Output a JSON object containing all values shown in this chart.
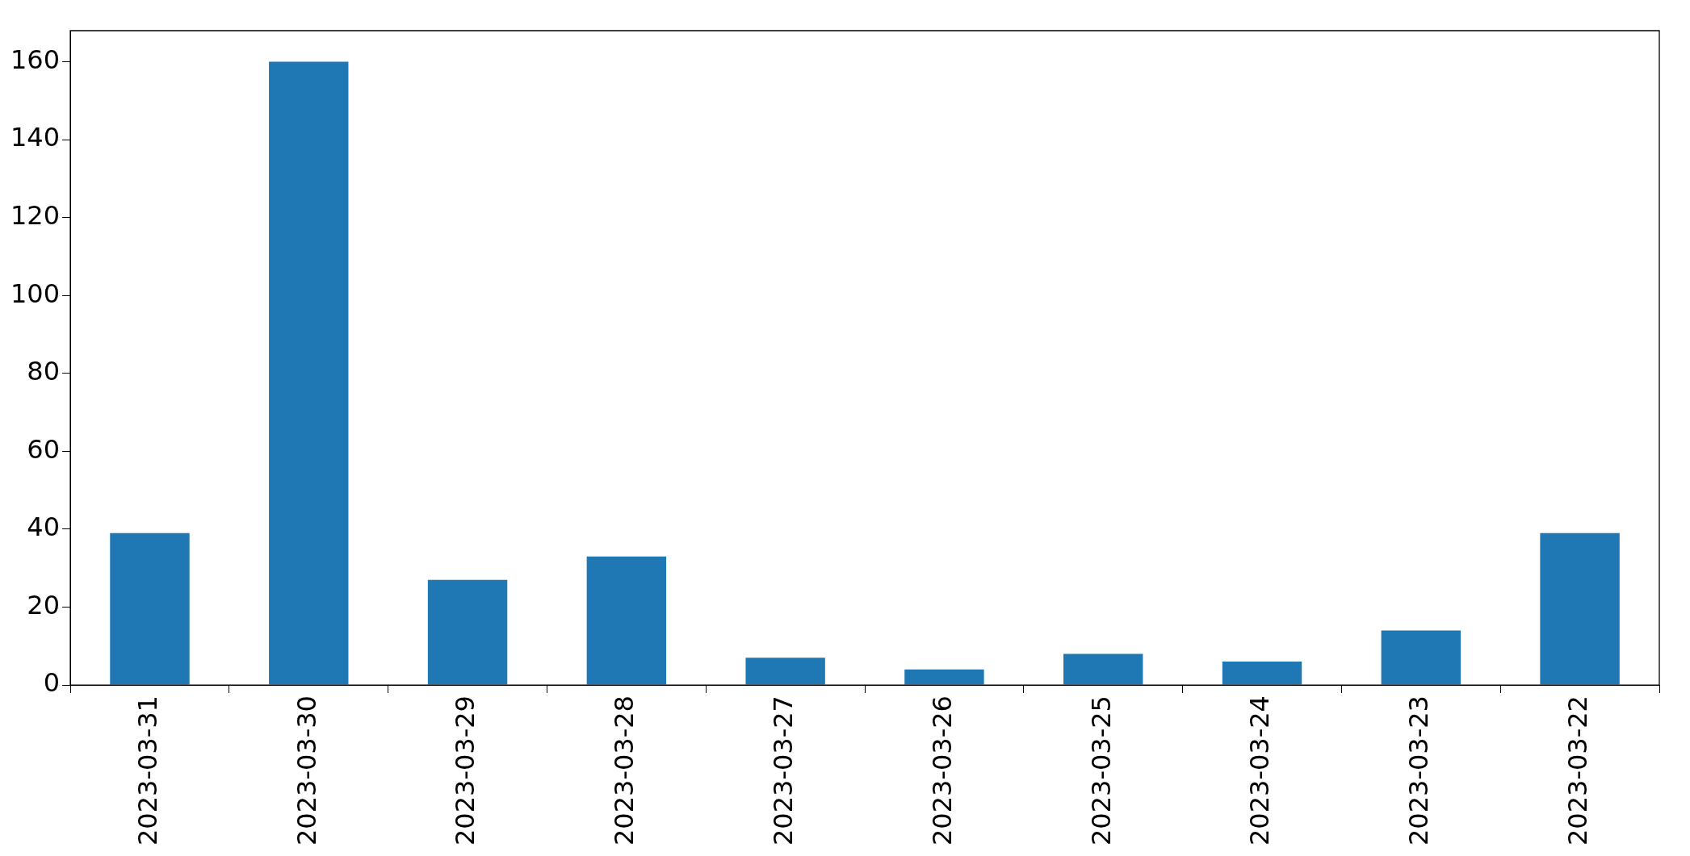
{
  "chart_data": {
    "type": "bar",
    "categories": [
      "2023-03-31",
      "2023-03-30",
      "2023-03-29",
      "2023-03-28",
      "2023-03-27",
      "2023-03-26",
      "2023-03-25",
      "2023-03-24",
      "2023-03-23",
      "2023-03-22"
    ],
    "values": [
      39,
      160,
      27,
      33,
      7,
      4,
      8,
      6,
      14,
      39
    ],
    "color": "#1f77b4",
    "ylim": [
      0,
      168
    ],
    "yticks": [
      0,
      20,
      40,
      60,
      80,
      100,
      120,
      140,
      160
    ],
    "grid": false,
    "legend": false
  }
}
